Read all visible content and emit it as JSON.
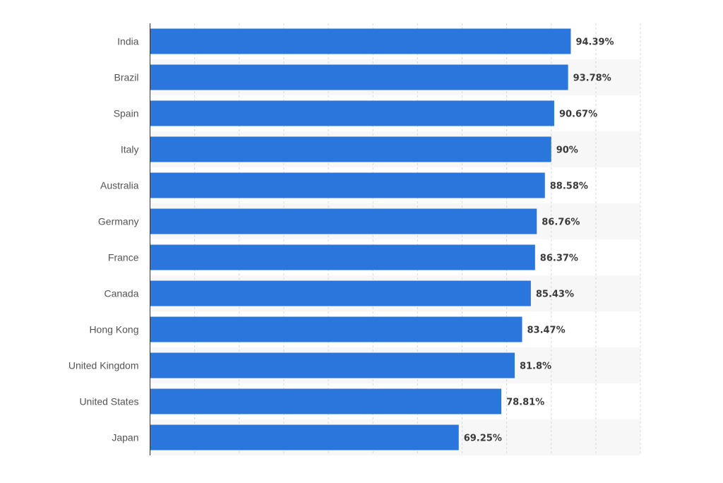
{
  "chart_data": {
    "type": "bar",
    "orientation": "horizontal",
    "categories": [
      "India",
      "Brazil",
      "Spain",
      "Italy",
      "Australia",
      "Germany",
      "France",
      "Canada",
      "Hong Kong",
      "United Kingdom",
      "United States",
      "Japan"
    ],
    "values": [
      94.39,
      93.78,
      90.67,
      90,
      88.58,
      86.76,
      86.37,
      85.43,
      83.47,
      81.8,
      78.81,
      69.25
    ],
    "value_labels": [
      "94.39%",
      "93.78%",
      "90.67%",
      "90%",
      "88.58%",
      "86.76%",
      "86.37%",
      "85.43%",
      "83.47%",
      "81.8%",
      "78.81%",
      "69.25%"
    ],
    "title": "",
    "xlabel": "",
    "ylabel": "",
    "xlim": [
      0,
      110
    ],
    "grid": true,
    "bar_color": "#2a76dd",
    "stripe_color": "#f7f7f7",
    "grid_color": "#d9d9d9"
  }
}
